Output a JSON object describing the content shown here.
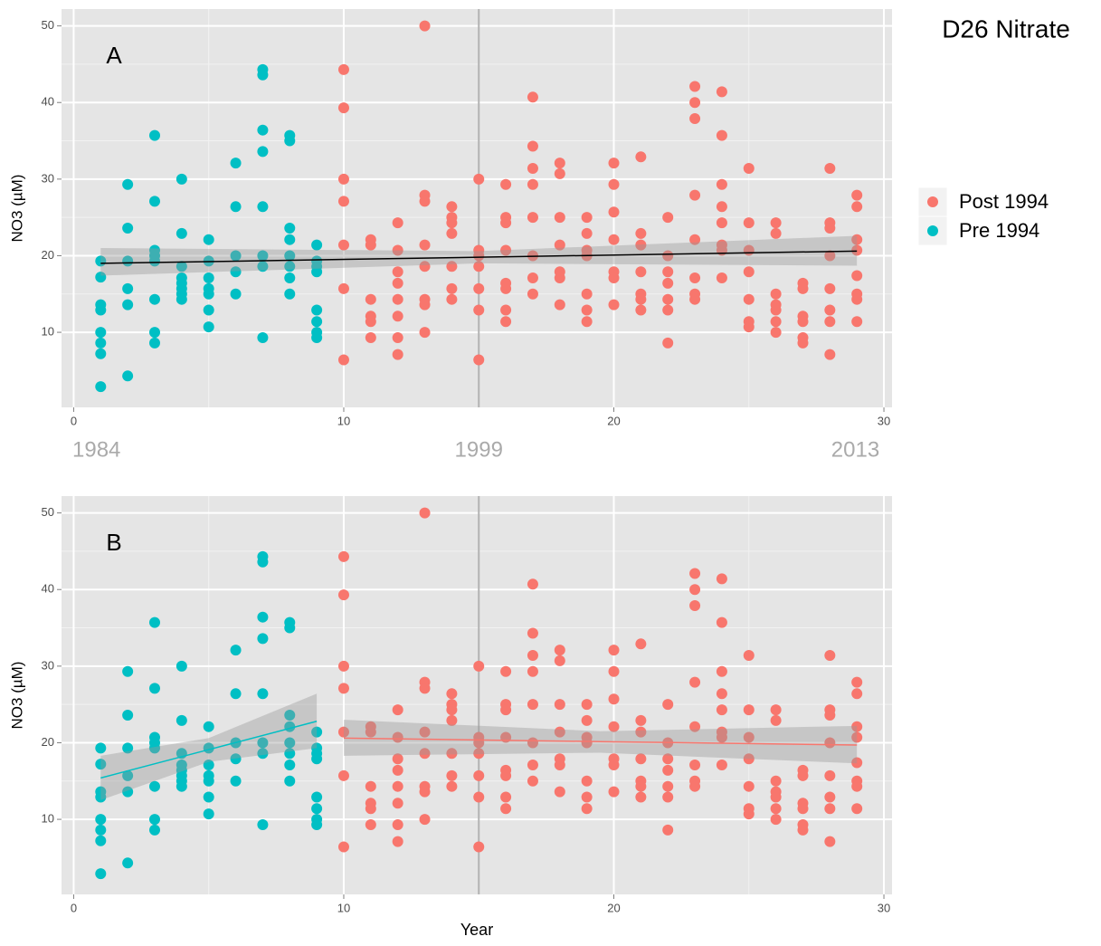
{
  "title": "D26 Nitrate",
  "chart_data": [
    {
      "type": "scatter",
      "annotation": "A",
      "ylabel": "NO3 (µM)",
      "xlim": [
        -0.45,
        30.3
      ],
      "ylim": [
        0.2,
        52.2
      ],
      "xticks": [
        0,
        10,
        20,
        30
      ],
      "yticks": [
        10,
        20,
        30,
        40,
        50
      ],
      "grid": true,
      "vline": 15,
      "year_labels": [
        {
          "value": 0,
          "label": "1984"
        },
        {
          "value": 15,
          "label": "1999"
        },
        {
          "value": 29,
          "label": "2013"
        }
      ],
      "series": [
        {
          "name": "Post 1994",
          "color": "#F8766D",
          "x": [
            10,
            10,
            10,
            10,
            10,
            10,
            10,
            11,
            11,
            11,
            11,
            11,
            11,
            12,
            12,
            12,
            12,
            12,
            12,
            12,
            12,
            13,
            13,
            13,
            13,
            13,
            13,
            13,
            13,
            14,
            14,
            14,
            14,
            14,
            14,
            14,
            15,
            15,
            15,
            15,
            15,
            15,
            15,
            16,
            16,
            16,
            16,
            16,
            16,
            16,
            16,
            17,
            17,
            17,
            17,
            17,
            17,
            17,
            17,
            18,
            18,
            18,
            18,
            18,
            18,
            18,
            19,
            19,
            19,
            19,
            19,
            19,
            19,
            20,
            20,
            20,
            20,
            20,
            20,
            20,
            21,
            21,
            21,
            21,
            21,
            21,
            21,
            22,
            22,
            22,
            22,
            22,
            22,
            22,
            23,
            23,
            23,
            23,
            23,
            23,
            23,
            23,
            24,
            24,
            24,
            24,
            24,
            24,
            24,
            24,
            25,
            25,
            25,
            25,
            25,
            25,
            25,
            26,
            26,
            26,
            26,
            26,
            26,
            26,
            27,
            27,
            27,
            27,
            27,
            27,
            28,
            28,
            28,
            28,
            28,
            28,
            28,
            28,
            29,
            29,
            29,
            29,
            29,
            29,
            29,
            29
          ],
          "y": [
            44.3,
            39.3,
            30,
            27.1,
            21.4,
            15.7,
            6.4,
            22.1,
            21.4,
            14.3,
            12.1,
            11.4,
            9.3,
            24.3,
            20.7,
            17.9,
            16.4,
            14.3,
            12.1,
            9.3,
            7.1,
            50,
            27.9,
            27.1,
            21.4,
            18.6,
            14.3,
            13.6,
            10,
            26.4,
            25,
            24.3,
            22.9,
            18.6,
            15.7,
            14.3,
            30,
            20.7,
            20,
            18.6,
            15.7,
            12.9,
            6.4,
            29.3,
            25,
            24.3,
            20.7,
            16.4,
            15.7,
            12.9,
            11.4,
            40.7,
            34.3,
            31.4,
            29.3,
            25,
            20,
            17.1,
            15,
            32.1,
            30.7,
            25,
            21.4,
            17.9,
            17.1,
            13.6,
            25,
            22.9,
            20.7,
            20,
            15,
            12.9,
            11.4,
            32.1,
            29.3,
            25.7,
            22.1,
            17.9,
            17.1,
            13.6,
            32.9,
            22.9,
            21.4,
            17.9,
            15,
            14.3,
            12.9,
            25,
            20,
            17.9,
            16.4,
            14.3,
            12.9,
            8.6,
            42.1,
            40,
            37.9,
            27.9,
            22.1,
            17.1,
            15,
            14.3,
            41.4,
            35.7,
            29.3,
            26.4,
            24.3,
            21.4,
            20.7,
            17.1,
            31.4,
            24.3,
            20.7,
            17.9,
            14.3,
            11.4,
            10.7,
            24.3,
            22.9,
            15,
            13.6,
            12.9,
            11.4,
            10,
            16.4,
            15.7,
            12.1,
            11.4,
            9.3,
            8.6,
            31.4,
            24.3,
            23.6,
            20,
            15.7,
            12.9,
            11.4,
            7.1,
            27.9,
            26.4,
            22.1,
            20.7,
            17.4,
            15,
            14.3,
            11.4
          ]
        },
        {
          "name": "Pre 1994",
          "color": "#00BFC4",
          "x": [
            1,
            1,
            1,
            1,
            1,
            1,
            1,
            1,
            2,
            2,
            2,
            2,
            2,
            2,
            3,
            3,
            3,
            3,
            3,
            3,
            3,
            3,
            4,
            4,
            4,
            4,
            4,
            4,
            4,
            4,
            5,
            5,
            5,
            5,
            5,
            5,
            5,
            6,
            6,
            6,
            6,
            6,
            7,
            7,
            7,
            7,
            7,
            7,
            7,
            7,
            8,
            8,
            8,
            8,
            8,
            8,
            8,
            8,
            9,
            9,
            9,
            9,
            9,
            9,
            9,
            9
          ],
          "y": [
            19.3,
            17.2,
            13.6,
            12.9,
            10,
            8.6,
            7.2,
            2.9,
            29.3,
            23.6,
            19.3,
            15.7,
            13.6,
            4.3,
            35.7,
            27.1,
            20.7,
            20,
            19.3,
            14.3,
            10,
            8.6,
            30,
            22.9,
            18.6,
            17.1,
            16.4,
            15.7,
            15,
            14.3,
            22.1,
            19.3,
            17.1,
            15.7,
            15,
            12.9,
            10.7,
            32.1,
            26.4,
            20,
            17.9,
            15,
            44.3,
            43.6,
            36.4,
            33.6,
            26.4,
            20,
            18.6,
            9.3,
            35.7,
            35,
            23.6,
            22.1,
            20,
            18.6,
            17.1,
            15,
            21.4,
            19.3,
            18.6,
            17.9,
            12.9,
            11.4,
            10,
            9.3
          ]
        }
      ],
      "fits": [
        {
          "color": "#000000",
          "x": [
            1,
            15,
            29
          ],
          "y": [
            19,
            19.8,
            20.6
          ],
          "lower": [
            17.4,
            19,
            18.7
          ],
          "upper": [
            21,
            20.6,
            22.6
          ]
        }
      ]
    },
    {
      "type": "scatter",
      "annotation": "B",
      "ylabel": "NO3 (µM)",
      "xlabel": "Year",
      "xlim": [
        -0.45,
        30.3
      ],
      "ylim": [
        0.2,
        52.2
      ],
      "xticks": [
        0,
        10,
        20,
        30
      ],
      "yticks": [
        10,
        20,
        30,
        40,
        50
      ],
      "grid": true,
      "vline": 15,
      "series": [
        {
          "name": "Post 1994",
          "color": "#F8766D",
          "x": [
            10,
            10,
            10,
            10,
            10,
            10,
            10,
            11,
            11,
            11,
            11,
            11,
            11,
            12,
            12,
            12,
            12,
            12,
            12,
            12,
            12,
            13,
            13,
            13,
            13,
            13,
            13,
            13,
            13,
            14,
            14,
            14,
            14,
            14,
            14,
            14,
            15,
            15,
            15,
            15,
            15,
            15,
            15,
            16,
            16,
            16,
            16,
            16,
            16,
            16,
            16,
            17,
            17,
            17,
            17,
            17,
            17,
            17,
            17,
            18,
            18,
            18,
            18,
            18,
            18,
            18,
            19,
            19,
            19,
            19,
            19,
            19,
            19,
            20,
            20,
            20,
            20,
            20,
            20,
            20,
            21,
            21,
            21,
            21,
            21,
            21,
            21,
            22,
            22,
            22,
            22,
            22,
            22,
            22,
            23,
            23,
            23,
            23,
            23,
            23,
            23,
            23,
            24,
            24,
            24,
            24,
            24,
            24,
            24,
            24,
            25,
            25,
            25,
            25,
            25,
            25,
            25,
            26,
            26,
            26,
            26,
            26,
            26,
            26,
            27,
            27,
            27,
            27,
            27,
            27,
            28,
            28,
            28,
            28,
            28,
            28,
            28,
            28,
            29,
            29,
            29,
            29,
            29,
            29,
            29,
            29
          ],
          "y": [
            44.3,
            39.3,
            30,
            27.1,
            21.4,
            15.7,
            6.4,
            22.1,
            21.4,
            14.3,
            12.1,
            11.4,
            9.3,
            24.3,
            20.7,
            17.9,
            16.4,
            14.3,
            12.1,
            9.3,
            7.1,
            50,
            27.9,
            27.1,
            21.4,
            18.6,
            14.3,
            13.6,
            10,
            26.4,
            25,
            24.3,
            22.9,
            18.6,
            15.7,
            14.3,
            30,
            20.7,
            20,
            18.6,
            15.7,
            12.9,
            6.4,
            29.3,
            25,
            24.3,
            20.7,
            16.4,
            15.7,
            12.9,
            11.4,
            40.7,
            34.3,
            31.4,
            29.3,
            25,
            20,
            17.1,
            15,
            32.1,
            30.7,
            25,
            21.4,
            17.9,
            17.1,
            13.6,
            25,
            22.9,
            20.7,
            20,
            15,
            12.9,
            11.4,
            32.1,
            29.3,
            25.7,
            22.1,
            17.9,
            17.1,
            13.6,
            32.9,
            22.9,
            21.4,
            17.9,
            15,
            14.3,
            12.9,
            25,
            20,
            17.9,
            16.4,
            14.3,
            12.9,
            8.6,
            42.1,
            40,
            37.9,
            27.9,
            22.1,
            17.1,
            15,
            14.3,
            41.4,
            35.7,
            29.3,
            26.4,
            24.3,
            21.4,
            20.7,
            17.1,
            31.4,
            24.3,
            20.7,
            17.9,
            14.3,
            11.4,
            10.7,
            24.3,
            22.9,
            15,
            13.6,
            12.9,
            11.4,
            10,
            16.4,
            15.7,
            12.1,
            11.4,
            9.3,
            8.6,
            31.4,
            24.3,
            23.6,
            20,
            15.7,
            12.9,
            11.4,
            7.1,
            27.9,
            26.4,
            22.1,
            20.7,
            17.4,
            15,
            14.3,
            11.4
          ]
        },
        {
          "name": "Pre 1994",
          "color": "#00BFC4",
          "x": [
            1,
            1,
            1,
            1,
            1,
            1,
            1,
            1,
            2,
            2,
            2,
            2,
            2,
            2,
            3,
            3,
            3,
            3,
            3,
            3,
            3,
            3,
            4,
            4,
            4,
            4,
            4,
            4,
            4,
            4,
            5,
            5,
            5,
            5,
            5,
            5,
            5,
            6,
            6,
            6,
            6,
            6,
            7,
            7,
            7,
            7,
            7,
            7,
            7,
            7,
            8,
            8,
            8,
            8,
            8,
            8,
            8,
            8,
            9,
            9,
            9,
            9,
            9,
            9,
            9,
            9
          ],
          "y": [
            19.3,
            17.2,
            13.6,
            12.9,
            10,
            8.6,
            7.2,
            2.9,
            29.3,
            23.6,
            19.3,
            15.7,
            13.6,
            4.3,
            35.7,
            27.1,
            20.7,
            20,
            19.3,
            14.3,
            10,
            8.6,
            30,
            22.9,
            18.6,
            17.1,
            16.4,
            15.7,
            15,
            14.3,
            22.1,
            19.3,
            17.1,
            15.7,
            15,
            12.9,
            10.7,
            32.1,
            26.4,
            20,
            17.9,
            15,
            44.3,
            43.6,
            36.4,
            33.6,
            26.4,
            20,
            18.6,
            9.3,
            35.7,
            35,
            23.6,
            22.1,
            20,
            18.6,
            17.1,
            15,
            21.4,
            19.3,
            18.6,
            17.9,
            12.9,
            11.4,
            10,
            9.3
          ]
        }
      ],
      "fits": [
        {
          "color": "#00BFC4",
          "x": [
            1,
            5,
            9
          ],
          "y": [
            15.4,
            19.1,
            22.8
          ],
          "lower": [
            12.5,
            17.5,
            19.3
          ],
          "upper": [
            18.3,
            20.6,
            26.4
          ]
        },
        {
          "color": "#F8766D",
          "x": [
            10,
            19.5,
            29
          ],
          "y": [
            20.6,
            20.15,
            19.7
          ],
          "lower": [
            18.3,
            18.7,
            17.3
          ],
          "upper": [
            23,
            21.5,
            22.2
          ]
        }
      ]
    }
  ]
}
